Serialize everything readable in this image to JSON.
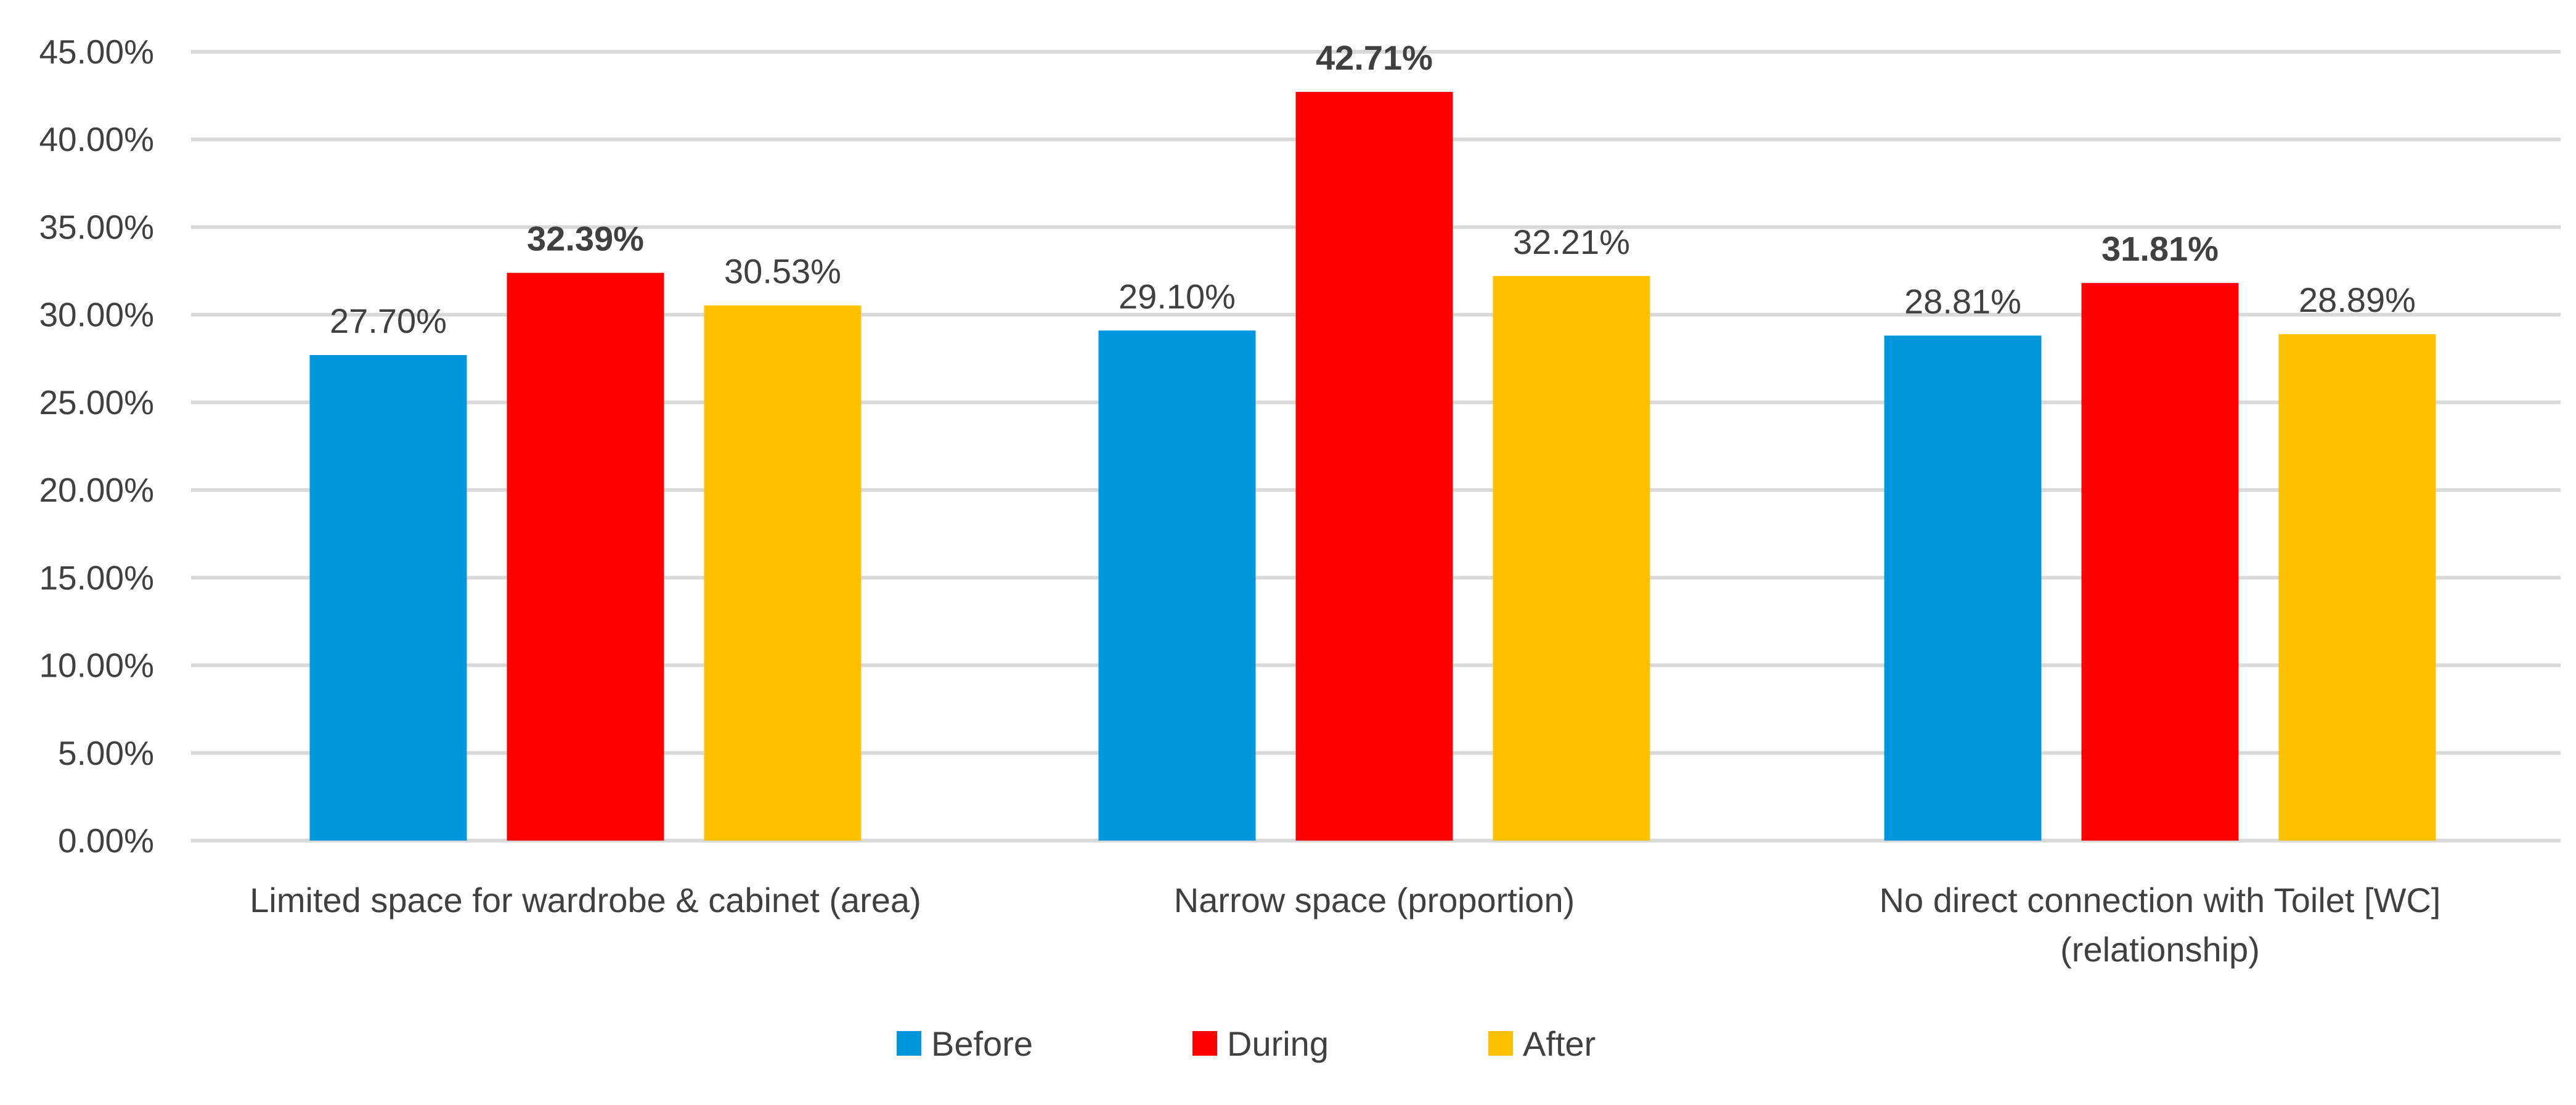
{
  "chart_data": {
    "type": "bar",
    "categories": [
      [
        "Limited space for wardrobe & cabinet (area)"
      ],
      [
        "Narrow space (proportion)"
      ],
      [
        "No direct connection with Toilet [WC]",
        "(relationship)"
      ]
    ],
    "series": [
      {
        "name": "Before",
        "color": "#0096DB",
        "values": [
          27.7,
          29.1,
          28.81
        ],
        "labels": [
          "27.70%",
          "29.10%",
          "28.81%"
        ]
      },
      {
        "name": "During",
        "color": "#FF0000",
        "values": [
          32.39,
          42.71,
          31.81
        ],
        "labels": [
          "32.39%",
          "42.71%",
          "31.81%"
        ]
      },
      {
        "name": "After",
        "color": "#FFC000",
        "values": [
          30.53,
          32.21,
          28.89
        ],
        "labels": [
          "30.53%",
          "32.21%",
          "28.89%"
        ]
      }
    ],
    "bold_labels": [
      [
        false,
        false,
        false
      ],
      [
        true,
        true,
        true
      ],
      [
        false,
        false,
        false
      ]
    ],
    "y_ticks": [
      "0.00%",
      "5.00%",
      "10.00%",
      "15.00%",
      "20.00%",
      "25.00%",
      "30.00%",
      "35.00%",
      "40.00%",
      "45.00%"
    ],
    "ylim": [
      0,
      45
    ],
    "grid": true,
    "legend_position": "bottom"
  }
}
